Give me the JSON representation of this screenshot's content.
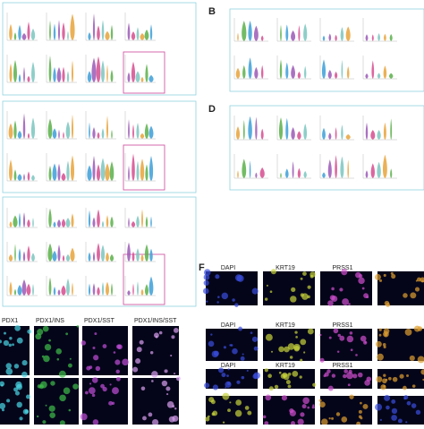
{
  "panels": {
    "b": "B",
    "d": "D",
    "f": "F"
  },
  "images_left": [
    "PDX1",
    "PDX1/INS",
    "PDX1/SST",
    "PDX1/INS/SST"
  ],
  "images_right": {
    "row1": [
      "DAPI",
      "KRT19",
      "PRSS1"
    ],
    "row2": [
      "DAPI",
      "KRT19",
      "PRSS1"
    ],
    "row3": [
      "DAPI",
      "KRT19",
      "PRSS1"
    ]
  }
}
